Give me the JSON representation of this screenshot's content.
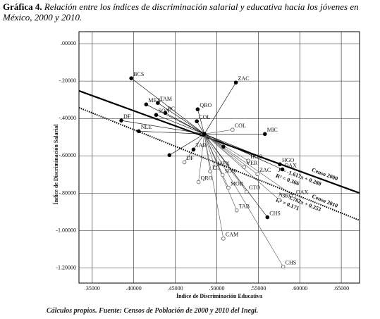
{
  "chart_data": {
    "type": "scatter",
    "title_label": "Gráfica 4.",
    "title": "Relación entre los índices de discriminación salarial y educativa hacia los jóvenes en México, 2000 y 2010.",
    "footnote": "Cálculos propios. Fuente: Censos de Población de 2000 y 2010 del Inegi.",
    "x_label": "Índice de Discriminación Educativa",
    "y_label": "Índice de Discriminación Salarial",
    "xlim": [
      0.334,
      0.672
    ],
    "ylim": [
      -1.28,
      0.064
    ],
    "xticks": [
      {
        "value": 0.35,
        "label": ".35000"
      },
      {
        "value": 0.4,
        "label": ".40000"
      },
      {
        "value": 0.45,
        "label": ".45000"
      },
      {
        "value": 0.5,
        "label": ".50000"
      },
      {
        "value": 0.55,
        "label": ".55000"
      },
      {
        "value": 0.6,
        "label": ".60000"
      },
      {
        "value": 0.65,
        "label": ".65000"
      }
    ],
    "yticks": [
      {
        "value": 0,
        "label": ".00000"
      },
      {
        "value": -0.2,
        "label": "-.20000"
      },
      {
        "value": -0.4,
        "label": "-.40000"
      },
      {
        "value": -0.6,
        "label": "-.60000"
      },
      {
        "value": -0.8,
        "label": "-.80000"
      },
      {
        "value": -1.0,
        "label": "-1.00000"
      },
      {
        "value": -1.2,
        "label": "-1.20000"
      }
    ],
    "grid": true,
    "hub": [
      0.485,
      -0.483
    ],
    "series": [
      {
        "name": "Censo 2000",
        "marker": "filled",
        "color": "#000000",
        "labels": [
          "BCS",
          "ZAC",
          "MEX",
          "TAM",
          "BC",
          "SON",
          "DF",
          "NLE",
          "QRO",
          "COL",
          "MIC",
          "HGO",
          "OAX",
          "CHS",
          "TAB",
          null,
          null
        ],
        "x": [
          0.397,
          0.523,
          0.415,
          0.429,
          0.438,
          0.427,
          0.385,
          0.406,
          0.477,
          0.476,
          0.558,
          0.576,
          0.579,
          0.561,
          0.472,
          0.443,
          0.508
        ],
        "values": [
          -0.185,
          -0.208,
          -0.325,
          -0.317,
          -0.37,
          -0.381,
          -0.411,
          -0.468,
          -0.351,
          -0.415,
          -0.483,
          -0.645,
          -0.672,
          -0.928,
          -0.566,
          -0.596,
          -0.551
        ],
        "fit": {
          "slope": -1.617,
          "intercept": 0.288,
          "equation": "y = -1.617x + 0.288",
          "r2": "R² = 0.366",
          "style": "solid"
        }
      },
      {
        "name": "Censo 2010",
        "marker": "hollow",
        "color": "#555555",
        "labels": [
          "CHS",
          "CAM",
          "GRO",
          "OAX",
          "TAB",
          "MOR",
          "GTO",
          "COL",
          "QRO",
          "BC",
          "DF",
          "HGO",
          "VER",
          "ZAC",
          "MEX",
          "SON"
        ],
        "x": [
          0.58,
          0.508,
          0.575,
          0.593,
          0.524,
          0.514,
          0.536,
          0.519,
          0.478,
          0.492,
          0.461,
          0.538,
          0.533,
          0.549,
          0.498,
          0.507
        ],
        "values": [
          -1.192,
          -1.042,
          -0.834,
          -0.815,
          -0.891,
          -0.77,
          -0.792,
          -0.46,
          -0.74,
          -0.683,
          -0.634,
          -0.626,
          -0.66,
          -0.698,
          -0.664,
          -0.702
        ],
        "fit": {
          "slope": -1.782,
          "intercept": 0.253,
          "equation": "y = -1.782x + 0.253",
          "r2": "R² = 0.171",
          "style": "dotted"
        }
      }
    ]
  }
}
